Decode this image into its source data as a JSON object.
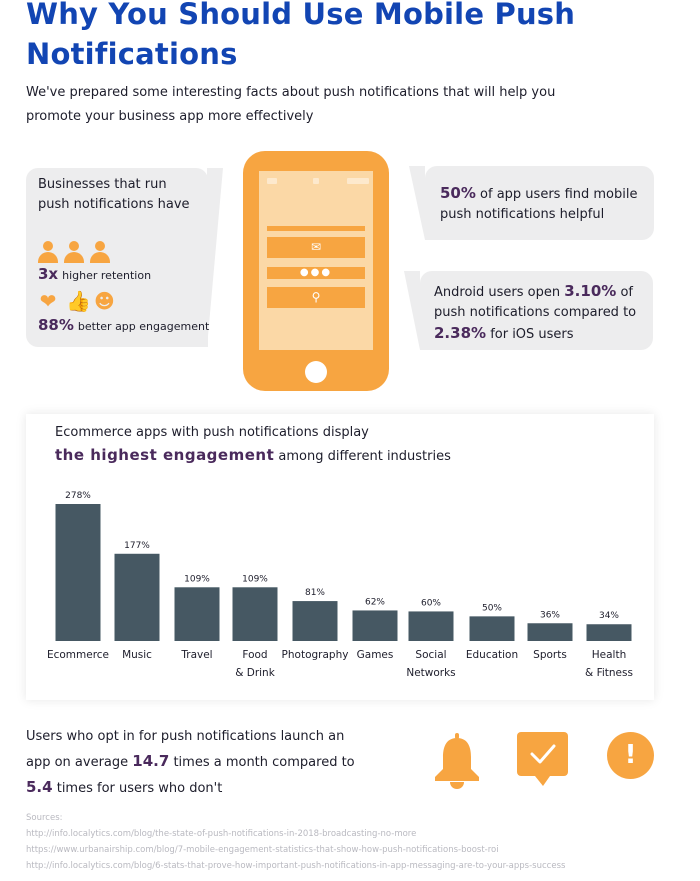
{
  "header": {
    "title": "Why You Should Use Mobile Push Notifications",
    "intro": "We've prepared some interesting facts about push notifications that will help you promote your business app more effectively"
  },
  "left_bubble": {
    "text": "Businesses that run push notifications have",
    "stat1_value": "3x",
    "stat1_label": "higher retention",
    "stat2_value": "88%",
    "stat2_label": "better app engagement"
  },
  "right_top": {
    "value": "50%",
    "text": "of app users find mobile push notifications helpful"
  },
  "right_bottom": {
    "text1": "Android users open",
    "value1": "3.10%",
    "text2": "of push notifications compared to",
    "value2": "2.38%",
    "text3": "for iOS users"
  },
  "chart_heading": {
    "line1": "Ecommerce apps with push notifications display",
    "emphasis": "the highest engagement",
    "line2_rest": "among different industries"
  },
  "chart_data": {
    "type": "bar",
    "categories": [
      "Ecommerce",
      "Music",
      "Travel",
      "Food & Drink",
      "Photography",
      "Games",
      "Social Networks",
      "Education",
      "Sports",
      "Health & Fitness"
    ],
    "category_lines": [
      [
        "Ecommerce"
      ],
      [
        "Music"
      ],
      [
        "Travel"
      ],
      [
        "Food",
        "& Drink"
      ],
      [
        "Photography"
      ],
      [
        "Games"
      ],
      [
        "Social",
        "Networks"
      ],
      [
        "Education"
      ],
      [
        "Sports"
      ],
      [
        "Health",
        "& Fitness"
      ]
    ],
    "values": [
      278,
      177,
      109,
      109,
      81,
      62,
      60,
      50,
      36,
      34
    ],
    "value_labels": [
      "278%",
      "177%",
      "109%",
      "109%",
      "81%",
      "62%",
      "60%",
      "50%",
      "36%",
      "34%"
    ],
    "ylim": [
      0,
      278
    ],
    "grid": false,
    "bar_color": "#465863"
  },
  "bottom": {
    "text1": "Users who opt in for push notifications launch an app on average",
    "value1": "14.7",
    "text2": "times a month compared to",
    "value2": "5.4",
    "text3": "times for users who don't"
  },
  "icons": {
    "bell": "bell-icon",
    "message": "message-check-icon",
    "alert": "alert-icon",
    "alert_glyph": "!"
  },
  "sources": {
    "label": "Sources:",
    "links": [
      "http://info.localytics.com/blog/the-state-of-push-notifications-in-2018-broadcasting-no-more",
      "https://www.urbanairship.com/blog/7-mobile-engagement-statistics-that-show-how-push-notifications-boost-roi",
      "http://info.localytics.com/blog/6-stats-that-prove-how-important-push-notifications-in-app-messaging-are-to-your-apps-success"
    ]
  },
  "colors": {
    "title": "#1245b3",
    "accent": "#f7a541",
    "highlight": "#4a2a5c",
    "bubble": "#ededee"
  }
}
